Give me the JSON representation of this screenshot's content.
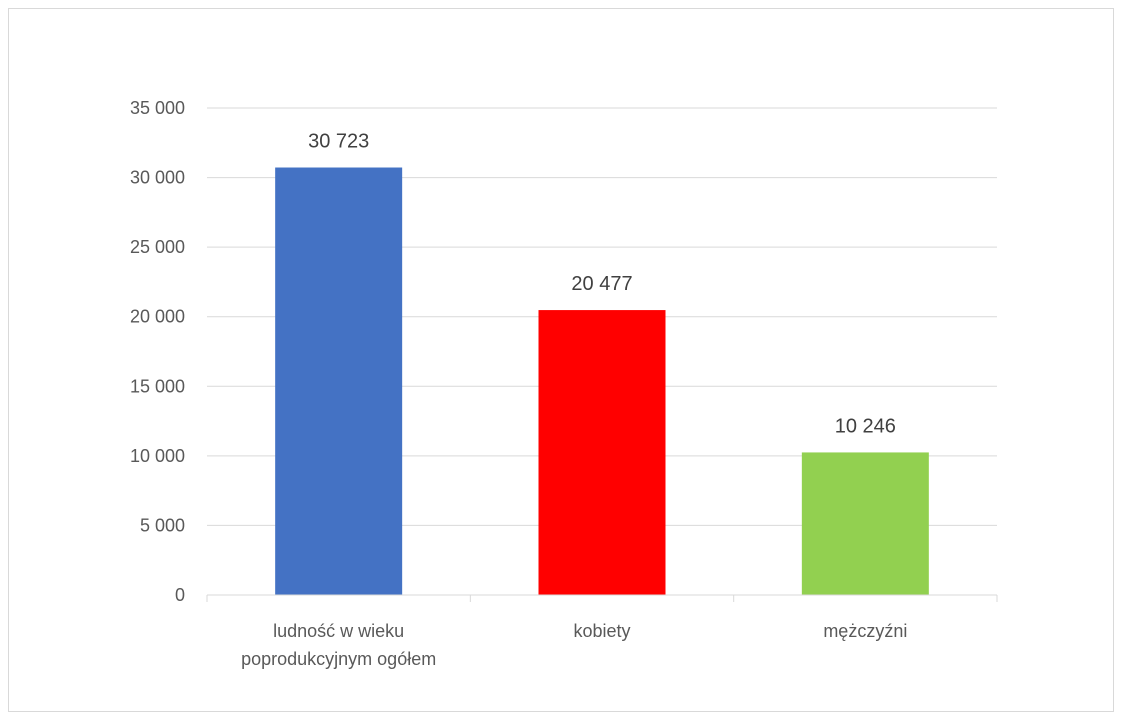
{
  "chart_data": {
    "type": "bar",
    "categories": [
      [
        "ludność w wieku",
        "poprodukcyjnym ogółem"
      ],
      [
        "kobiety"
      ],
      [
        "mężczyźni"
      ]
    ],
    "values": [
      30723,
      20477,
      10246
    ],
    "data_labels": [
      "30 723",
      "20 477",
      "10 246"
    ],
    "colors": [
      "#4472c4",
      "#ff0000",
      "#92d050"
    ],
    "ylim": [
      0,
      35000
    ],
    "yticks": [
      0,
      5000,
      10000,
      15000,
      20000,
      25000,
      30000,
      35000
    ],
    "ytick_labels": [
      "0",
      "5 000",
      "10 000",
      "15 000",
      "20 000",
      "25 000",
      "30 000",
      "35 000"
    ],
    "grid": true,
    "legend": "none",
    "title": "",
    "xlabel": "",
    "ylabel": ""
  }
}
